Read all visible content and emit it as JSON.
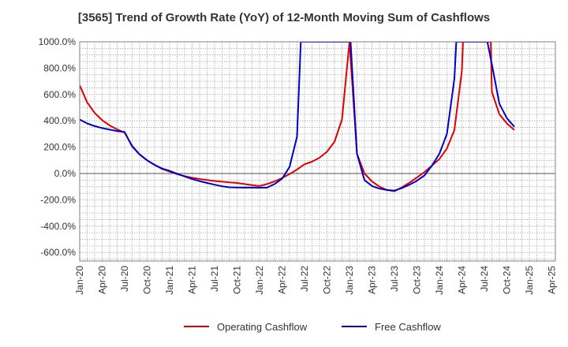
{
  "chart_data": {
    "type": "line",
    "title": "[3565]  Trend of Growth Rate (YoY) of 12-Month Moving Sum of Cashflows",
    "xlabel": "",
    "ylabel": "",
    "ylim": [
      -650,
      1000
    ],
    "y_ticks": [
      1000,
      800,
      600,
      400,
      200,
      0,
      -200,
      -400,
      -600
    ],
    "y_tick_labels": [
      "1000.0%",
      "800.0%",
      "600.0%",
      "400.0%",
      "200.0%",
      "0.0%",
      "-200.0%",
      "-400.0%",
      "-600.0%"
    ],
    "x_tick_labels": [
      "Jan-20",
      "Apr-20",
      "Jul-20",
      "Oct-20",
      "Jan-21",
      "Apr-21",
      "Jul-21",
      "Oct-21",
      "Jan-22",
      "Apr-22",
      "Jul-22",
      "Oct-22",
      "Jan-23",
      "Apr-23",
      "Jul-23",
      "Oct-23",
      "Jan-24",
      "Apr-24",
      "Jul-24",
      "Oct-24",
      "Jan-25",
      "Apr-25"
    ],
    "grid": true,
    "legend_position": "bottom",
    "series": [
      {
        "name": "Operating Cashflow",
        "color": "#e00000",
        "points": [
          [
            0,
            670
          ],
          [
            1,
            540
          ],
          [
            2,
            460
          ],
          [
            3,
            405
          ],
          [
            4,
            365
          ],
          [
            5,
            335
          ],
          [
            6,
            310
          ],
          [
            7,
            210
          ],
          [
            8,
            145
          ],
          [
            9,
            100
          ],
          [
            10,
            65
          ],
          [
            11,
            35
          ],
          [
            12,
            15
          ],
          [
            13,
            -5
          ],
          [
            14,
            -20
          ],
          [
            15,
            -32
          ],
          [
            16,
            -42
          ],
          [
            17,
            -50
          ],
          [
            18,
            -57
          ],
          [
            19,
            -62
          ],
          [
            20,
            -67
          ],
          [
            21,
            -72
          ],
          [
            22,
            -80
          ],
          [
            23,
            -88
          ],
          [
            24,
            -95
          ],
          [
            25,
            -80
          ],
          [
            26,
            -60
          ],
          [
            27,
            -35
          ],
          [
            28,
            -5
          ],
          [
            29,
            30
          ],
          [
            30,
            70
          ],
          [
            31,
            90
          ],
          [
            32,
            120
          ],
          [
            33,
            165
          ],
          [
            34,
            240
          ],
          [
            35,
            410
          ],
          [
            36,
            1000
          ],
          [
            37,
            150
          ],
          [
            38,
            0
          ],
          [
            39,
            -60
          ],
          [
            40,
            -100
          ],
          [
            41,
            -125
          ],
          [
            42,
            -135
          ],
          [
            43,
            -105
          ],
          [
            44,
            -70
          ],
          [
            45,
            -30
          ],
          [
            46,
            10
          ],
          [
            47,
            60
          ],
          [
            48,
            110
          ],
          [
            49,
            190
          ],
          [
            50,
            330
          ],
          [
            51,
            780
          ],
          [
            51.15,
            1000
          ],
          [
            54.85,
            1000
          ],
          [
            55,
            620
          ],
          [
            56,
            450
          ],
          [
            57,
            380
          ],
          [
            58,
            330
          ]
        ]
      },
      {
        "name": "Free Cashflow",
        "color": "#0000cc",
        "points": [
          [
            0,
            410
          ],
          [
            1,
            380
          ],
          [
            2,
            360
          ],
          [
            3,
            345
          ],
          [
            4,
            333
          ],
          [
            5,
            322
          ],
          [
            6,
            315
          ],
          [
            7,
            205
          ],
          [
            8,
            145
          ],
          [
            9,
            100
          ],
          [
            10,
            65
          ],
          [
            11,
            38
          ],
          [
            12,
            20
          ],
          [
            13,
            -2
          ],
          [
            14,
            -22
          ],
          [
            15,
            -42
          ],
          [
            16,
            -58
          ],
          [
            17,
            -72
          ],
          [
            18,
            -85
          ],
          [
            19,
            -97
          ],
          [
            20,
            -105
          ],
          [
            21,
            -106
          ],
          [
            22,
            -107
          ],
          [
            23,
            -107
          ],
          [
            24,
            -108
          ],
          [
            25,
            -107
          ],
          [
            26,
            -80
          ],
          [
            27,
            -40
          ],
          [
            28,
            50
          ],
          [
            29,
            280
          ],
          [
            29.5,
            1000
          ],
          [
            36.15,
            1000
          ],
          [
            37,
            150
          ],
          [
            38,
            -50
          ],
          [
            39,
            -95
          ],
          [
            40,
            -115
          ],
          [
            41,
            -125
          ],
          [
            42,
            -130
          ],
          [
            43,
            -110
          ],
          [
            44,
            -85
          ],
          [
            45,
            -55
          ],
          [
            46,
            -15
          ],
          [
            47,
            60
          ],
          [
            48,
            150
          ],
          [
            49,
            300
          ],
          [
            50,
            720
          ],
          [
            50.25,
            1000
          ],
          [
            54.4,
            1000
          ],
          [
            55,
            830
          ],
          [
            56,
            530
          ],
          [
            57,
            420
          ],
          [
            58,
            355
          ]
        ]
      }
    ]
  }
}
